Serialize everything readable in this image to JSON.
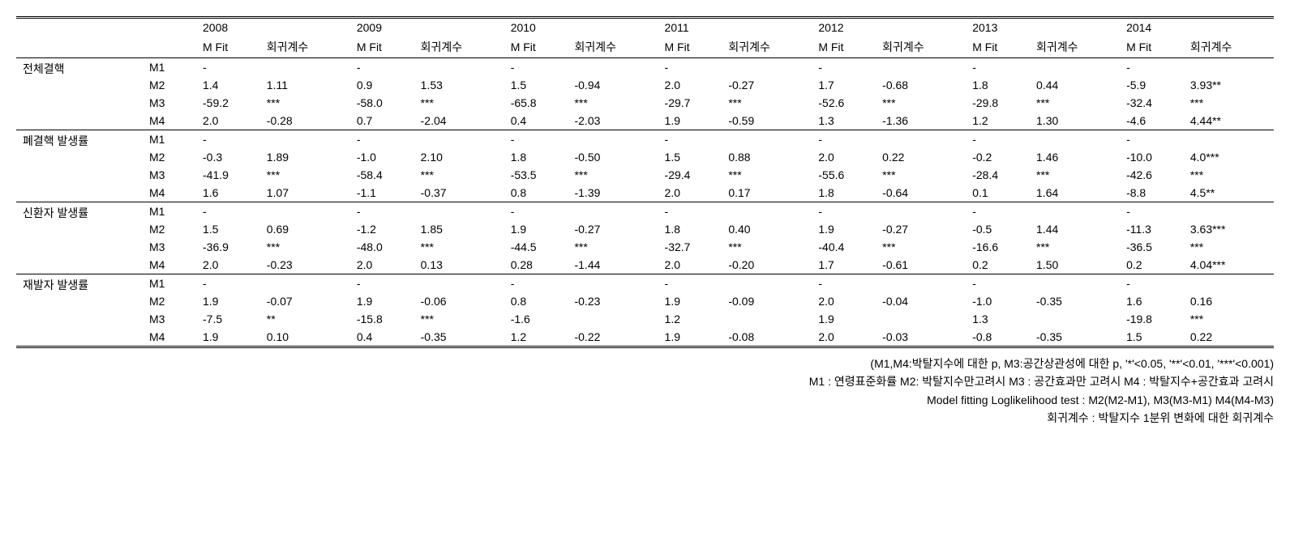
{
  "type": "table",
  "columns": {
    "category": "",
    "model": "",
    "years": [
      "2008",
      "2009",
      "2010",
      "2011",
      "2012",
      "2013",
      "2014"
    ],
    "sub": [
      "M Fit",
      "회귀계수"
    ]
  },
  "groups": [
    {
      "label": "전체결핵",
      "rows": [
        {
          "m": "M1",
          "c": [
            [
              "-",
              ""
            ],
            [
              "-",
              ""
            ],
            [
              "-",
              ""
            ],
            [
              "-",
              ""
            ],
            [
              "-",
              ""
            ],
            [
              "-",
              ""
            ],
            [
              "-",
              ""
            ]
          ]
        },
        {
          "m": "M2",
          "c": [
            [
              "1.4",
              "1.11"
            ],
            [
              "0.9",
              "1.53"
            ],
            [
              "1.5",
              "-0.94"
            ],
            [
              "2.0",
              "-0.27"
            ],
            [
              "1.7",
              "-0.68"
            ],
            [
              "1.8",
              "0.44"
            ],
            [
              "-5.9",
              "3.93**"
            ]
          ]
        },
        {
          "m": "M3",
          "c": [
            [
              "-59.2",
              "***"
            ],
            [
              "-58.0",
              "***"
            ],
            [
              "-65.8",
              "***"
            ],
            [
              "-29.7",
              "***"
            ],
            [
              "-52.6",
              "***"
            ],
            [
              "-29.8",
              "***"
            ],
            [
              "-32.4",
              "***"
            ]
          ]
        },
        {
          "m": "M4",
          "c": [
            [
              "2.0",
              "-0.28"
            ],
            [
              "0.7",
              "-2.04"
            ],
            [
              "0.4",
              "-2.03"
            ],
            [
              "1.9",
              "-0.59"
            ],
            [
              "1.3",
              "-1.36"
            ],
            [
              "1.2",
              "1.30"
            ],
            [
              "-4.6",
              "4.44**"
            ]
          ]
        }
      ]
    },
    {
      "label": "폐결핵 발생률",
      "rows": [
        {
          "m": "M1",
          "c": [
            [
              "-",
              ""
            ],
            [
              "-",
              ""
            ],
            [
              "-",
              ""
            ],
            [
              "-",
              ""
            ],
            [
              "-",
              ""
            ],
            [
              "-",
              ""
            ],
            [
              "-",
              ""
            ]
          ]
        },
        {
          "m": "M2",
          "c": [
            [
              "-0.3",
              "1.89"
            ],
            [
              "-1.0",
              "2.10"
            ],
            [
              "1.8",
              "-0.50"
            ],
            [
              "1.5",
              "0.88"
            ],
            [
              "2.0",
              "0.22"
            ],
            [
              "-0.2",
              "1.46"
            ],
            [
              "-10.0",
              "4.0***"
            ]
          ]
        },
        {
          "m": "M3",
          "c": [
            [
              "-41.9",
              "***"
            ],
            [
              "-58.4",
              "***"
            ],
            [
              "-53.5",
              "***"
            ],
            [
              "-29.4",
              "***"
            ],
            [
              "-55.6",
              "***"
            ],
            [
              "-28.4",
              "***"
            ],
            [
              "-42.6",
              "***"
            ]
          ]
        },
        {
          "m": "M4",
          "c": [
            [
              "1.6",
              "1.07"
            ],
            [
              "-1.1",
              "-0.37"
            ],
            [
              "0.8",
              "-1.39"
            ],
            [
              "2.0",
              "0.17"
            ],
            [
              "1.8",
              "-0.64"
            ],
            [
              "0.1",
              "1.64"
            ],
            [
              "-8.8",
              "4.5**"
            ]
          ]
        }
      ]
    },
    {
      "label": "신환자 발생률",
      "rows": [
        {
          "m": "M1",
          "c": [
            [
              "-",
              ""
            ],
            [
              "-",
              ""
            ],
            [
              "-",
              ""
            ],
            [
              "-",
              ""
            ],
            [
              "-",
              ""
            ],
            [
              "-",
              ""
            ],
            [
              "-",
              ""
            ]
          ]
        },
        {
          "m": "M2",
          "c": [
            [
              "1.5",
              "0.69"
            ],
            [
              "-1.2",
              "1.85"
            ],
            [
              "1.9",
              "-0.27"
            ],
            [
              "1.8",
              "0.40"
            ],
            [
              "1.9",
              "-0.27"
            ],
            [
              "-0.5",
              "1.44"
            ],
            [
              "-11.3",
              "3.63***"
            ]
          ]
        },
        {
          "m": "M3",
          "c": [
            [
              "-36.9",
              "***"
            ],
            [
              "-48.0",
              "***"
            ],
            [
              "-44.5",
              "***"
            ],
            [
              "-32.7",
              "***"
            ],
            [
              "-40.4",
              "***"
            ],
            [
              "-16.6",
              "***"
            ],
            [
              "-36.5",
              "***"
            ]
          ]
        },
        {
          "m": "M4",
          "c": [
            [
              "2.0",
              "-0.23"
            ],
            [
              "2.0",
              "0.13"
            ],
            [
              "0.28",
              "-1.44"
            ],
            [
              "2.0",
              "-0.20"
            ],
            [
              "1.7",
              "-0.61"
            ],
            [
              "0.2",
              "1.50"
            ],
            [
              "0.2",
              "4.04***"
            ]
          ]
        }
      ]
    },
    {
      "label": "재발자 발생률",
      "rows": [
        {
          "m": "M1",
          "c": [
            [
              "-",
              ""
            ],
            [
              "-",
              ""
            ],
            [
              "-",
              ""
            ],
            [
              "-",
              ""
            ],
            [
              "-",
              ""
            ],
            [
              "-",
              ""
            ],
            [
              "-",
              ""
            ]
          ]
        },
        {
          "m": "M2",
          "c": [
            [
              "1.9",
              "-0.07"
            ],
            [
              "1.9",
              "-0.06"
            ],
            [
              "0.8",
              "-0.23"
            ],
            [
              "1.9",
              "-0.09"
            ],
            [
              "2.0",
              "-0.04"
            ],
            [
              "-1.0",
              "-0.35"
            ],
            [
              "1.6",
              "0.16"
            ]
          ]
        },
        {
          "m": "M3",
          "c": [
            [
              "-7.5",
              "**"
            ],
            [
              "-15.8",
              "***"
            ],
            [
              "-1.6",
              ""
            ],
            [
              "1.2",
              ""
            ],
            [
              "1.9",
              ""
            ],
            [
              "1.3",
              ""
            ],
            [
              "-19.8",
              "***"
            ]
          ]
        },
        {
          "m": "M4",
          "c": [
            [
              "1.9",
              "0.10"
            ],
            [
              "0.4",
              "-0.35"
            ],
            [
              "1.2",
              "-0.22"
            ],
            [
              "1.9",
              "-0.08"
            ],
            [
              "2.0",
              "-0.03"
            ],
            [
              "-0.8",
              "-0.35"
            ],
            [
              "1.5",
              "0.22"
            ]
          ]
        }
      ]
    }
  ],
  "notes": [
    "(M1,M4:박탈지수에 대한 p, M3:공간상관성에 대한 p, '*'<0.05, '**'<0.01, '***'<0.001)",
    "M1 : 연령표준화률 M2: 박탈지수만고려시 M3 : 공간효과만 고려시 M4 : 박탈지수+공간효과 고려시",
    "Model fitting Loglikelihood test : M2(M2-M1), M3(M3-M1) M4(M4-M3)",
    "회귀계수 : 박탈지수 1분위 변화에 대한 회귀계수"
  ],
  "style": {
    "font_size": 14,
    "border_color": "#000000",
    "background": "#ffffff"
  }
}
